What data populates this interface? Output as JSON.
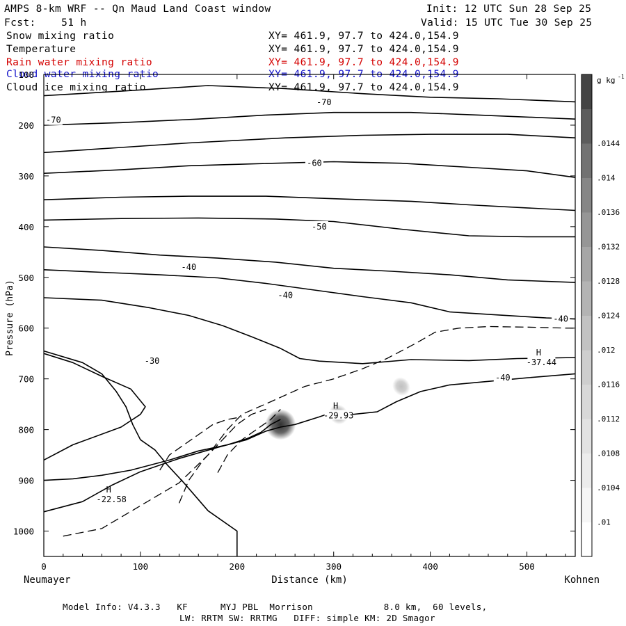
{
  "header": {
    "title": "AMPS 8-km WRF -- Qn Maud Land Coast window",
    "init": "Init: 12 UTC Sun 28 Sep 25",
    "fcst": "Fcst:    51 h",
    "valid": "Valid: 15 UTC Tue 30 Sep 25"
  },
  "fields": [
    {
      "name": "Snow mixing ratio",
      "xy": "XY= 461.9, 97.7 to 424.0,154.9",
      "color": "#000000"
    },
    {
      "name": "Temperature",
      "xy": "XY= 461.9, 97.7 to 424.0,154.9",
      "color": "#000000"
    },
    {
      "name": "Rain water mixing ratio",
      "xy": "XY= 461.9, 97.7 to 424.0,154.9",
      "color": "#d40000"
    },
    {
      "name": "Cloud water mixing ratio",
      "xy": "XY= 461.9, 97.7 to 424.0,154.9",
      "color": "#1010c8"
    },
    {
      "name": "Cloud ice mixing ratio",
      "xy": "XY= 461.9, 97.7 to 424.0,154.9",
      "color": "#000000"
    }
  ],
  "footer": {
    "line1": "Model Info: V4.3.3   KF      MYJ PBL  Morrison             8.0 km,  60 levels,",
    "line2": "LW: RRTM SW: RRTMG   DIFF: simple KM: 2D Smagor"
  },
  "chart_data": {
    "type": "contour",
    "title": "AMPS 8-km WRF -- Qn Maud Land Coast window",
    "xlabel": "Distance (km)",
    "ylabel": "Pressure (hPa)",
    "x_left_label": "Neumayer",
    "x_right_label": "Kohnen",
    "xlim": [
      0,
      550
    ],
    "ylim": [
      1050,
      100
    ],
    "x_ticks": [
      0,
      100,
      200,
      300,
      400,
      500
    ],
    "y_ticks": [
      100,
      200,
      300,
      400,
      500,
      600,
      700,
      800,
      900,
      1000
    ],
    "colorbar": {
      "unit": "g kg",
      "unit_exp": "-1",
      "ticks": [
        ".01",
        ".0104",
        ".0108",
        ".0112",
        ".0116",
        ".012",
        ".0124",
        ".0128",
        ".0132",
        ".0136",
        ".014",
        ".0144"
      ],
      "colors": [
        "#ffffff",
        "#f6f6f6",
        "#ececec",
        "#e2e2e2",
        "#d8d8d8",
        "#cecece",
        "#c2c2c2",
        "#b4b4b4",
        "#a6a6a6",
        "#969696",
        "#868686",
        "#727272",
        "#5c5c5c",
        "#444444"
      ]
    },
    "temperature_labels": [
      {
        "text": "-70",
        "x": 10,
        "p": 190
      },
      {
        "text": "-70",
        "x": 290,
        "p": 155
      },
      {
        "text": "-60",
        "x": 280,
        "p": 275
      },
      {
        "text": "-50",
        "x": 285,
        "p": 400
      },
      {
        "text": "-40",
        "x": 150,
        "p": 480
      },
      {
        "text": "-40",
        "x": 250,
        "p": 535
      },
      {
        "text": "-30",
        "x": 112,
        "p": 665
      },
      {
        "text": "-40",
        "x": 475,
        "p": 698
      },
      {
        "text": "-40",
        "x": 535,
        "p": 582
      }
    ],
    "extrema": [
      {
        "symbol": "H",
        "value": "-22.58",
        "x": 70,
        "p": 940
      },
      {
        "symbol": "H",
        "value": "-29.93",
        "x": 305,
        "p": 775
      },
      {
        "symbol": "H",
        "value": "-37.44",
        "x": 515,
        "p": 670
      }
    ],
    "temperature_contours": [
      [
        [
          0,
          142
        ],
        [
          80,
          133
        ],
        [
          170,
          122
        ],
        [
          250,
          128
        ],
        [
          330,
          138
        ],
        [
          400,
          145
        ],
        [
          470,
          148
        ],
        [
          550,
          154
        ]
      ],
      [
        [
          0,
          200
        ],
        [
          80,
          195
        ],
        [
          160,
          188
        ],
        [
          230,
          180
        ],
        [
          300,
          175
        ],
        [
          380,
          175
        ],
        [
          450,
          180
        ],
        [
          550,
          188
        ]
      ],
      [
        [
          0,
          254
        ],
        [
          80,
          244
        ],
        [
          150,
          235
        ],
        [
          250,
          225
        ],
        [
          330,
          220
        ],
        [
          400,
          218
        ],
        [
          480,
          218
        ],
        [
          550,
          225
        ]
      ],
      [
        [
          0,
          295
        ],
        [
          80,
          288
        ],
        [
          150,
          280
        ],
        [
          220,
          276
        ],
        [
          300,
          272
        ],
        [
          370,
          275
        ],
        [
          440,
          283
        ],
        [
          500,
          290
        ],
        [
          550,
          303
        ]
      ],
      [
        [
          0,
          347
        ],
        [
          80,
          342
        ],
        [
          150,
          340
        ],
        [
          230,
          340
        ],
        [
          300,
          345
        ],
        [
          380,
          350
        ],
        [
          440,
          357
        ],
        [
          500,
          363
        ],
        [
          550,
          368
        ]
      ],
      [
        [
          0,
          387
        ],
        [
          80,
          384
        ],
        [
          160,
          383
        ],
        [
          240,
          385
        ],
        [
          300,
          390
        ],
        [
          370,
          405
        ],
        [
          440,
          418
        ],
        [
          500,
          420
        ],
        [
          550,
          420
        ]
      ],
      [
        [
          0,
          440
        ],
        [
          60,
          447
        ],
        [
          120,
          456
        ],
        [
          180,
          462
        ],
        [
          240,
          470
        ],
        [
          300,
          482
        ],
        [
          360,
          488
        ],
        [
          420,
          495
        ],
        [
          480,
          505
        ],
        [
          550,
          510
        ]
      ],
      [
        [
          0,
          485
        ],
        [
          60,
          490
        ],
        [
          120,
          495
        ],
        [
          180,
          501
        ],
        [
          230,
          512
        ],
        [
          280,
          525
        ],
        [
          330,
          538
        ],
        [
          380,
          550
        ],
        [
          420,
          568
        ],
        [
          470,
          574
        ],
        [
          520,
          580
        ],
        [
          550,
          582
        ]
      ],
      [
        [
          0,
          540
        ],
        [
          60,
          545
        ],
        [
          110,
          560
        ],
        [
          150,
          575
        ],
        [
          185,
          595
        ],
        [
          215,
          617
        ],
        [
          245,
          640
        ],
        [
          265,
          660
        ],
        [
          285,
          665
        ],
        [
          330,
          670
        ],
        [
          380,
          662
        ],
        [
          440,
          664
        ],
        [
          490,
          660
        ],
        [
          550,
          658
        ]
      ],
      [
        [
          0,
          645
        ],
        [
          40,
          668
        ],
        [
          60,
          690
        ],
        [
          75,
          725
        ],
        [
          85,
          755
        ],
        [
          92,
          790
        ],
        [
          100,
          820
        ],
        [
          115,
          840
        ],
        [
          128,
          870
        ],
        [
          145,
          905
        ],
        [
          170,
          960
        ],
        [
          200,
          1000
        ],
        [
          200,
          1050
        ]
      ],
      [
        [
          0,
          860
        ],
        [
          30,
          830
        ],
        [
          80,
          795
        ],
        [
          100,
          770
        ],
        [
          105,
          755
        ],
        [
          90,
          720
        ],
        [
          60,
          695
        ],
        [
          30,
          668
        ],
        [
          0,
          650
        ]
      ],
      [
        [
          0,
          962
        ],
        [
          40,
          942
        ],
        [
          70,
          910
        ],
        [
          100,
          883
        ],
        [
          140,
          857
        ],
        [
          180,
          835
        ],
        [
          210,
          820
        ],
        [
          230,
          803
        ],
        [
          245,
          795
        ],
        [
          260,
          790
        ],
        [
          285,
          775
        ],
        [
          300,
          765
        ],
        [
          320,
          770
        ],
        [
          345,
          765
        ],
        [
          365,
          745
        ],
        [
          390,
          725
        ],
        [
          420,
          712
        ],
        [
          460,
          705
        ],
        [
          500,
          698
        ],
        [
          550,
          690
        ]
      ],
      [
        [
          0,
          900
        ],
        [
          30,
          897
        ],
        [
          60,
          890
        ],
        [
          90,
          880
        ],
        [
          130,
          860
        ],
        [
          160,
          842
        ],
        [
          190,
          830
        ],
        [
          210,
          818
        ],
        [
          225,
          805
        ],
        [
          235,
          790
        ],
        [
          245,
          780
        ]
      ]
    ],
    "cloud_ice_contours": [
      [
        [
          20,
          1010
        ],
        [
          60,
          995
        ],
        [
          100,
          950
        ],
        [
          140,
          905
        ],
        [
          170,
          850
        ],
        [
          190,
          800
        ],
        [
          205,
          770
        ],
        [
          235,
          745
        ],
        [
          270,
          715
        ],
        [
          300,
          700
        ],
        [
          330,
          680
        ],
        [
          355,
          660
        ],
        [
          385,
          630
        ],
        [
          405,
          608
        ],
        [
          430,
          600
        ],
        [
          460,
          597
        ],
        [
          500,
          598
        ],
        [
          540,
          600
        ],
        [
          550,
          600
        ]
      ],
      [
        [
          140,
          945
        ],
        [
          150,
          900
        ],
        [
          165,
          860
        ],
        [
          185,
          820
        ],
        [
          200,
          790
        ],
        [
          215,
          770
        ],
        [
          230,
          760
        ]
      ],
      [
        [
          180,
          885
        ],
        [
          190,
          850
        ],
        [
          205,
          820
        ],
        [
          220,
          800
        ],
        [
          235,
          780
        ],
        [
          245,
          760
        ]
      ],
      [
        [
          120,
          880
        ],
        [
          130,
          850
        ],
        [
          145,
          830
        ],
        [
          160,
          810
        ],
        [
          175,
          790
        ],
        [
          190,
          780
        ],
        [
          205,
          775
        ]
      ]
    ],
    "snow_maxima": [
      {
        "x": 245,
        "p": 790,
        "strength": 0.0144
      },
      {
        "x": 305,
        "p": 770,
        "strength": 0.0112
      },
      {
        "x": 370,
        "p": 715,
        "strength": 0.0108
      }
    ]
  }
}
